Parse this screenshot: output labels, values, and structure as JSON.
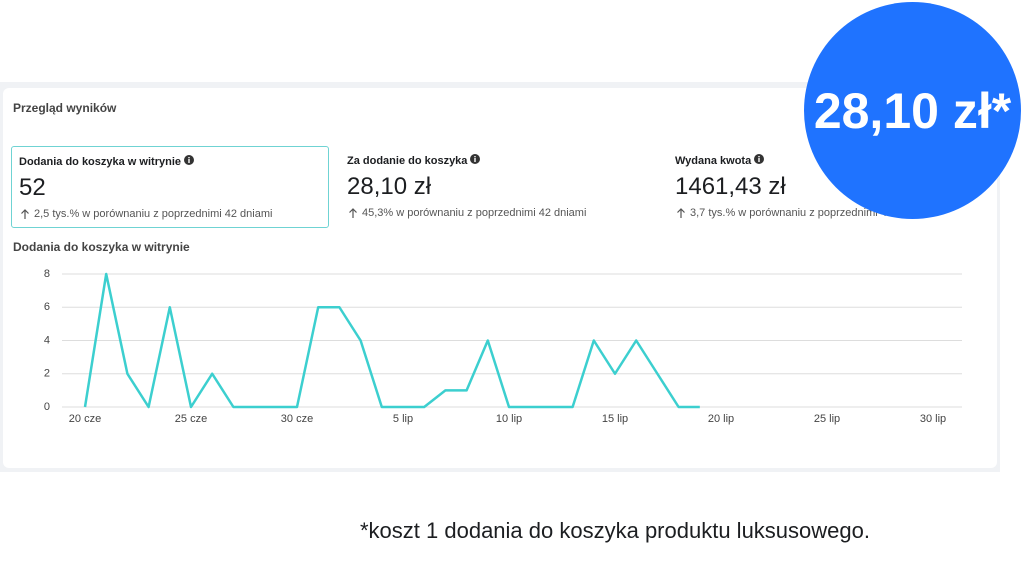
{
  "header": {
    "title": "Przegląd wyników"
  },
  "metrics": [
    {
      "label": "Dodania do koszyka w witrynie",
      "value": "52",
      "change": "2,5 tys.% w porównaniu z poprzednimi 42 dniami"
    },
    {
      "label": "Za dodanie do koszyka",
      "value": "28,10 zł",
      "change": "45,3% w porównaniu z poprzednimi 42 dniami"
    },
    {
      "label": "Wydana kwota",
      "value": "1461,43 zł",
      "change": "3,7 tys.% w porównaniu z poprzednimi 42 dniami"
    }
  ],
  "badge": "28,10 zł*",
  "footnote": "*koszt 1 dodania do koszyka produktu luksusowego.",
  "chart_data": {
    "type": "line",
    "title": "Dodania do koszyka w witrynie",
    "categories": [
      "20 cze",
      null,
      null,
      null,
      null,
      "25 cze",
      null,
      null,
      null,
      null,
      "30 cze",
      null,
      null,
      null,
      null,
      "5 lip",
      null,
      null,
      null,
      null,
      "10 lip",
      null,
      null,
      null,
      null,
      "15 lip",
      null,
      null,
      null,
      null,
      "20 lip",
      null,
      null,
      null,
      null,
      "25 lip",
      null,
      null,
      null,
      null,
      "30 lip"
    ],
    "values": [
      0,
      8,
      2,
      0,
      6,
      0,
      2,
      0,
      0,
      0,
      0,
      6,
      6,
      4,
      0,
      0,
      0,
      1,
      1,
      4,
      0,
      0,
      0,
      0,
      4,
      2,
      4,
      2,
      0,
      0,
      null,
      null,
      null,
      null,
      null,
      null,
      null,
      null,
      null,
      null,
      null
    ],
    "color": "#3ccfcf",
    "ylim": [
      0,
      8
    ],
    "yticks": [
      0,
      2,
      4,
      6,
      8
    ],
    "grid": true
  }
}
